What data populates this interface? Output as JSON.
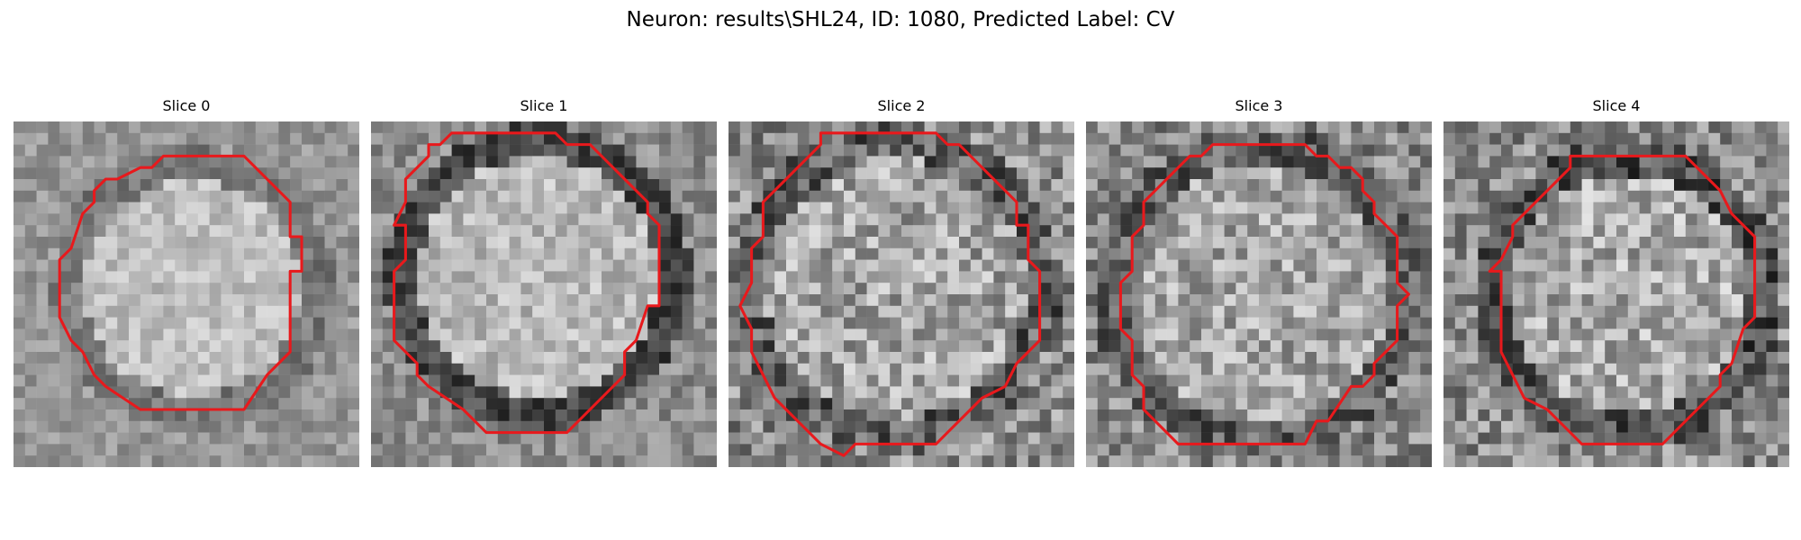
{
  "figure": {
    "title": "Neuron: results\\SHL24, ID: 1080, Predicted Label: CV"
  },
  "contour_color": "#e8191c",
  "slices": [
    {
      "title": "Slice 0"
    },
    {
      "title": "Slice 1"
    },
    {
      "title": "Slice 2"
    },
    {
      "title": "Slice 3"
    },
    {
      "title": "Slice 4"
    }
  ]
}
